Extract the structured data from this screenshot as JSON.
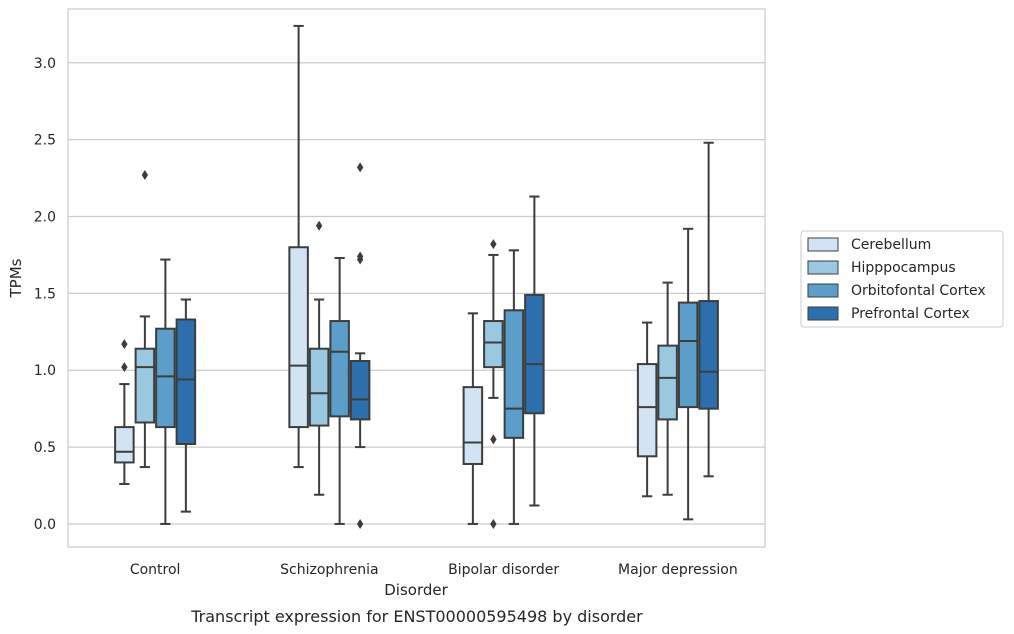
{
  "chart_data": {
    "type": "box",
    "caption": "Transcript expression for ENST00000595498 by disorder",
    "xlabel": "Disorder",
    "ylabel": "TPMs",
    "ylim": [
      -0.15,
      3.35
    ],
    "yticks": [
      "0.0",
      "0.5",
      "1.0",
      "1.5",
      "2.0",
      "2.5",
      "3.0"
    ],
    "categories": [
      "Control",
      "Schizophrenia",
      "Bipolar disorder",
      "Major depression"
    ],
    "grid": "horizontal",
    "legend_position": "right",
    "series": [
      {
        "name": "Cerebellum",
        "color": "#d2e3f3",
        "boxes": [
          {
            "whislo": 0.26,
            "q1": 0.4,
            "med": 0.47,
            "q3": 0.63,
            "whishi": 0.91,
            "fliers": [
              1.02,
              1.17
            ]
          },
          {
            "whislo": 0.37,
            "q1": 0.63,
            "med": 1.03,
            "q3": 1.8,
            "whishi": 3.24,
            "fliers": []
          },
          {
            "whislo": 0.0,
            "q1": 0.39,
            "med": 0.53,
            "q3": 0.89,
            "whishi": 1.37,
            "fliers": []
          },
          {
            "whislo": 0.18,
            "q1": 0.44,
            "med": 0.76,
            "q3": 1.04,
            "whishi": 1.31,
            "fliers": []
          }
        ]
      },
      {
        "name": "Hipppocampus",
        "color": "#9ac8e0",
        "boxes": [
          {
            "whislo": 0.37,
            "q1": 0.66,
            "med": 1.02,
            "q3": 1.14,
            "whishi": 1.35,
            "fliers": [
              2.27
            ]
          },
          {
            "whislo": 0.19,
            "q1": 0.64,
            "med": 0.85,
            "q3": 1.14,
            "whishi": 1.46,
            "fliers": [
              1.94
            ]
          },
          {
            "whislo": 0.82,
            "q1": 1.02,
            "med": 1.18,
            "q3": 1.32,
            "whishi": 1.75,
            "fliers": [
              0.0,
              0.55,
              1.82
            ]
          },
          {
            "whislo": 0.19,
            "q1": 0.68,
            "med": 0.95,
            "q3": 1.16,
            "whishi": 1.57,
            "fliers": []
          }
        ]
      },
      {
        "name": "Orbitofontal Cortex",
        "color": "#5a9ec9",
        "boxes": [
          {
            "whislo": 0.0,
            "q1": 0.63,
            "med": 0.96,
            "q3": 1.27,
            "whishi": 1.72,
            "fliers": []
          },
          {
            "whislo": 0.0,
            "q1": 0.7,
            "med": 1.12,
            "q3": 1.32,
            "whishi": 1.73,
            "fliers": []
          },
          {
            "whislo": 0.0,
            "q1": 0.56,
            "med": 0.75,
            "q3": 1.39,
            "whishi": 1.78,
            "fliers": []
          },
          {
            "whislo": 0.03,
            "q1": 0.76,
            "med": 1.19,
            "q3": 1.44,
            "whishi": 1.92,
            "fliers": []
          }
        ]
      },
      {
        "name": "Prefrontal Cortex",
        "color": "#2d6ead",
        "boxes": [
          {
            "whislo": 0.08,
            "q1": 0.52,
            "med": 0.94,
            "q3": 1.33,
            "whishi": 1.46,
            "fliers": []
          },
          {
            "whislo": 0.5,
            "q1": 0.68,
            "med": 0.81,
            "q3": 1.06,
            "whishi": 1.11,
            "fliers": [
              0.0,
              1.72,
              1.74,
              2.32
            ]
          },
          {
            "whislo": 0.12,
            "q1": 0.72,
            "med": 1.04,
            "q3": 1.49,
            "whishi": 2.13,
            "fliers": []
          },
          {
            "whislo": 0.31,
            "q1": 0.75,
            "med": 0.99,
            "q3": 1.45,
            "whishi": 2.48,
            "fliers": []
          }
        ]
      }
    ]
  }
}
